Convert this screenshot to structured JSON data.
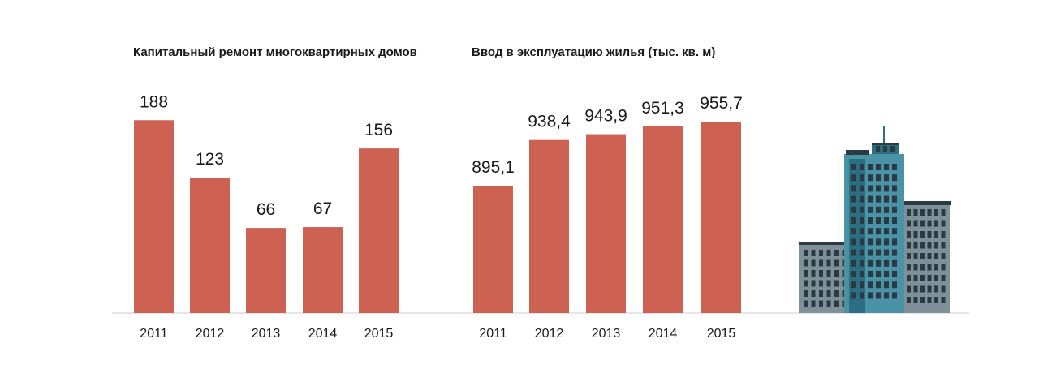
{
  "colors": {
    "bar": "#CD6252",
    "baseline": "#cccccc",
    "text": "#1a1a1a",
    "building_dark_teal": "#2C6E82",
    "building_mid_teal": "#4A92A6",
    "building_grey": "#7E9198",
    "building_window": "#2B3A42",
    "building_roof": "#2A3B45"
  },
  "illustration": {
    "icon": "apartment-buildings-icon"
  },
  "chart_data": [
    {
      "type": "bar",
      "title": "Капитальный ремонт многоквартирных домов",
      "categories": [
        "2011",
        "2012",
        "2013",
        "2014",
        "2015"
      ],
      "values": [
        188,
        123,
        66,
        67,
        156
      ],
      "value_labels": [
        "188",
        "123",
        "66",
        "67",
        "156"
      ],
      "xlabel": "",
      "ylabel": "",
      "grid": false,
      "legend": "none"
    },
    {
      "type": "bar",
      "title": "Ввод в эксплуатацию жилья (тыс. кв. м)",
      "categories": [
        "2011",
        "2012",
        "2013",
        "2014",
        "2015"
      ],
      "values": [
        895.1,
        938.4,
        943.9,
        951.3,
        955.7
      ],
      "value_labels": [
        "895,1",
        "938,4",
        "943,9",
        "951,3",
        "955,7"
      ],
      "xlabel": "",
      "ylabel": "",
      "grid": false,
      "legend": "none"
    }
  ]
}
